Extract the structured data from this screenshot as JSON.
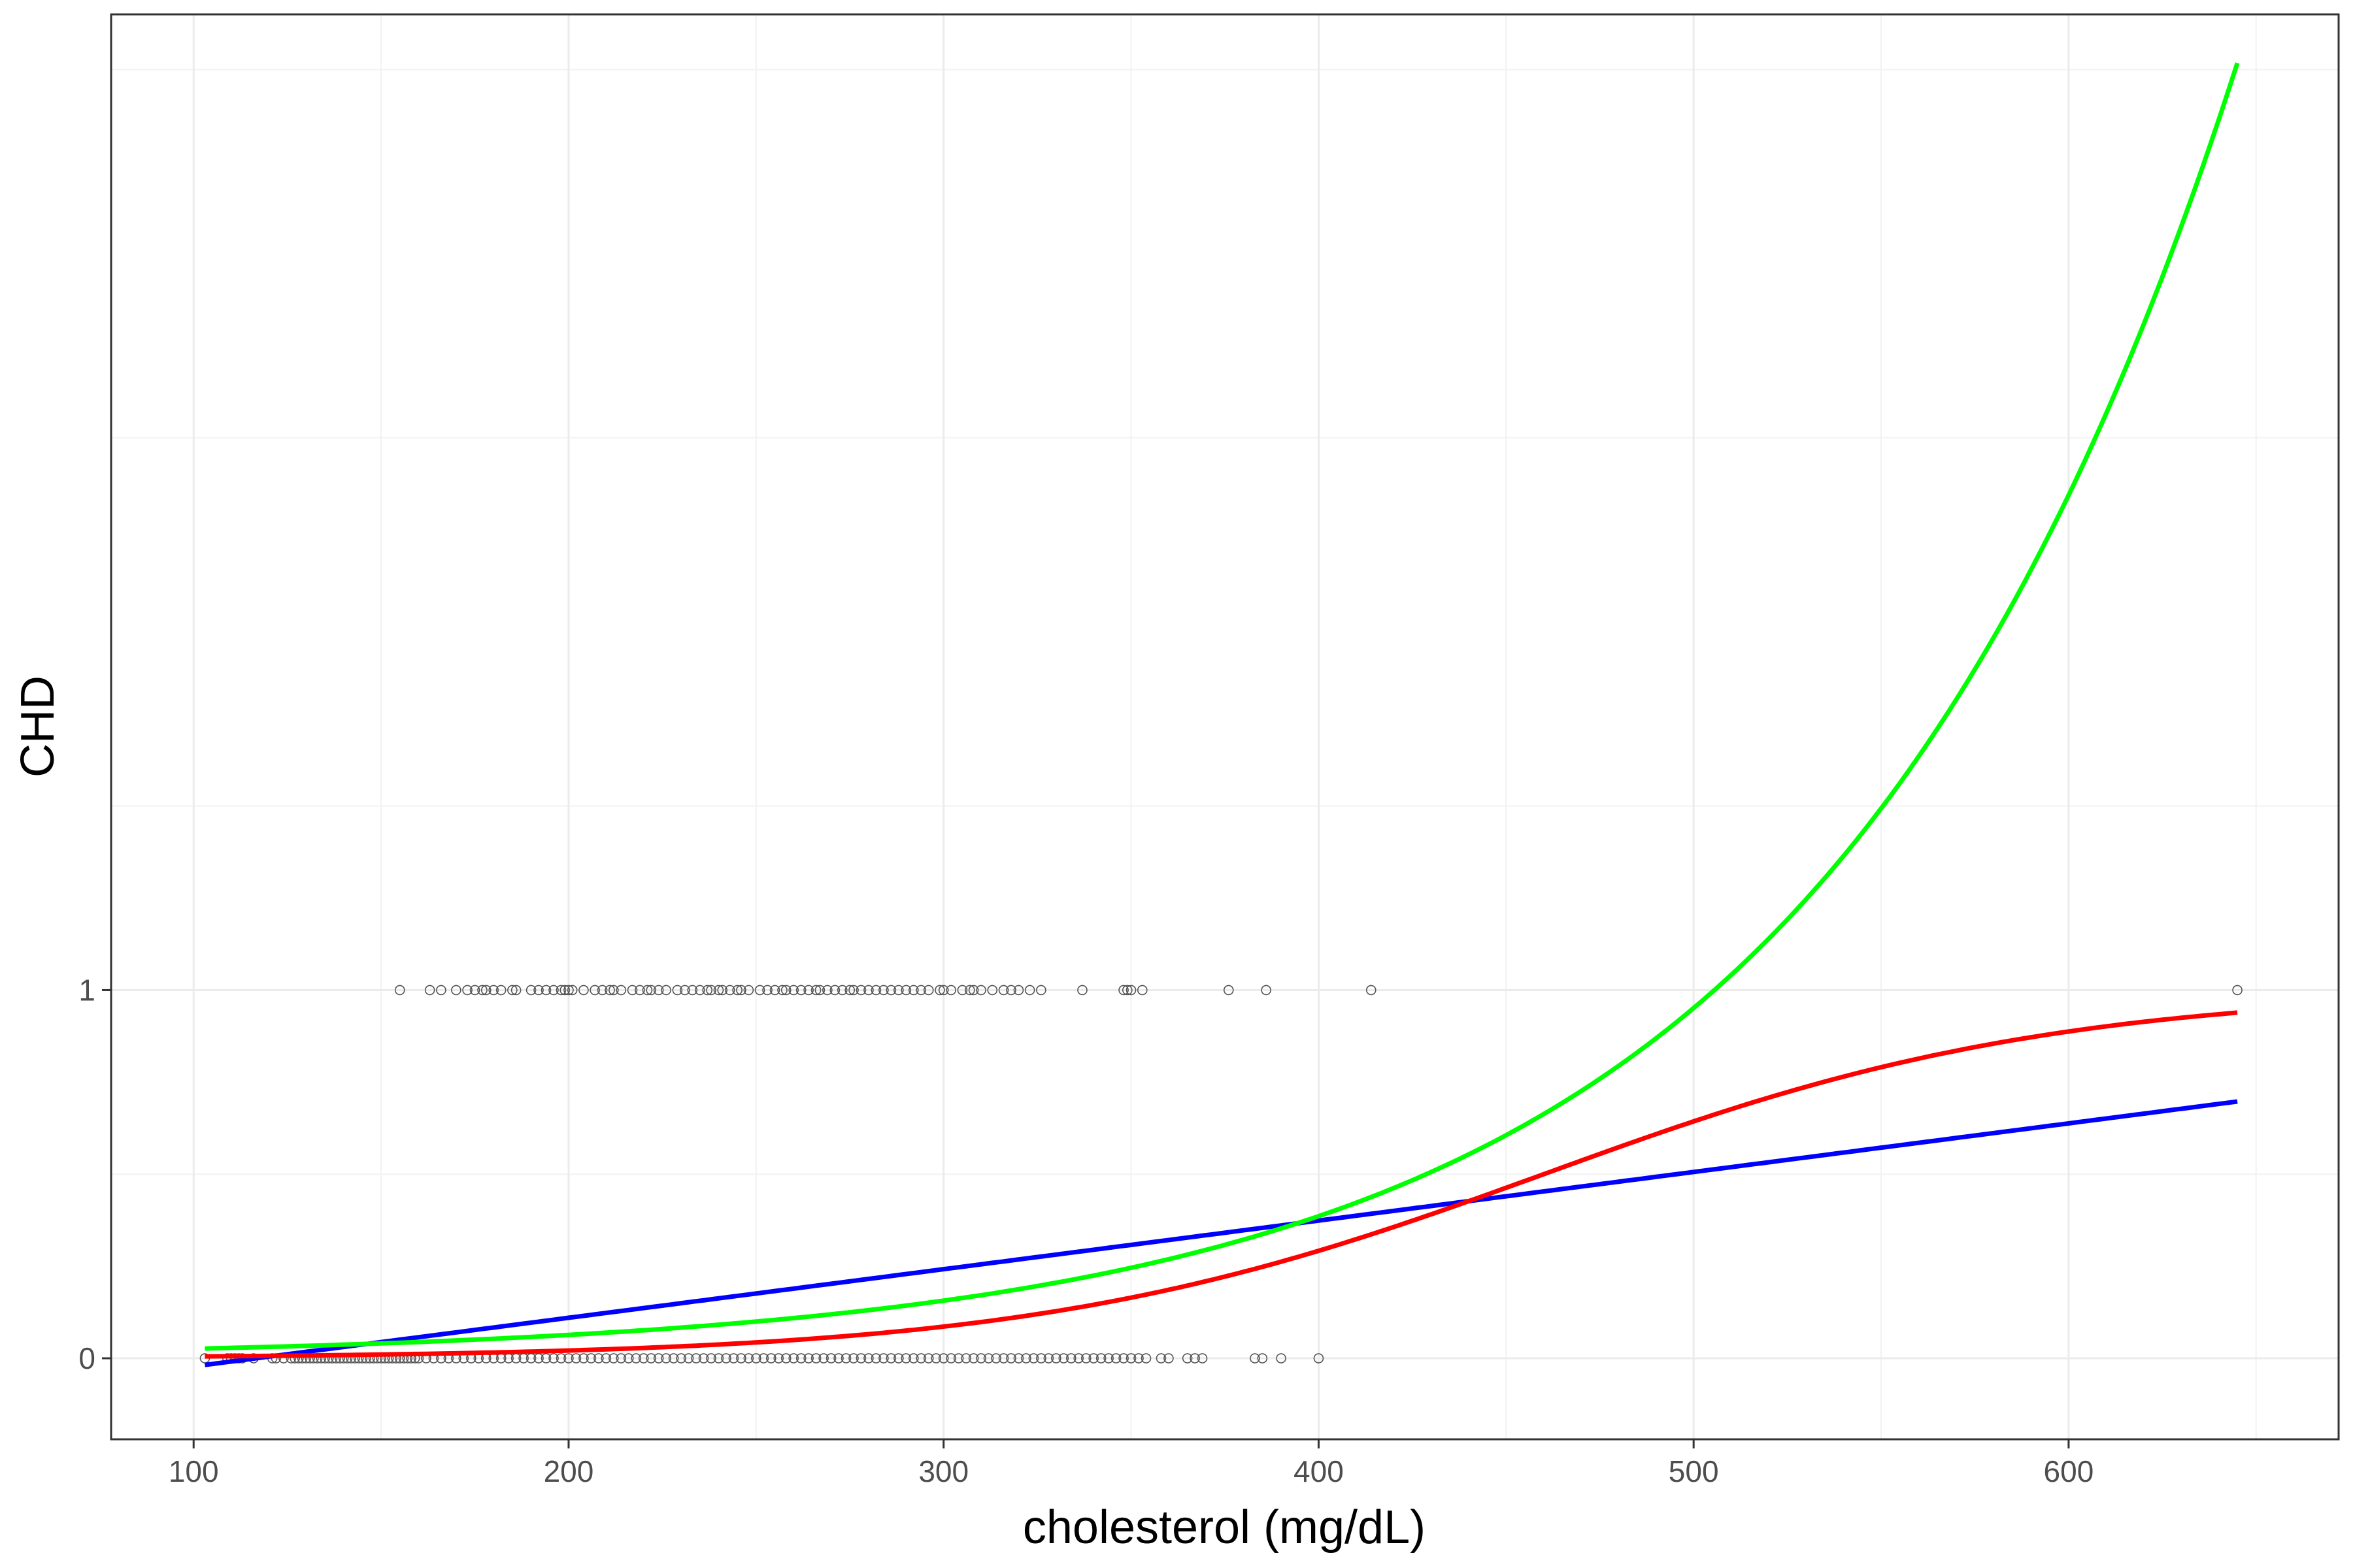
{
  "chart_data": {
    "type": "scatter",
    "xlabel": "cholesterol (mg/dL)",
    "ylabel": "CHD",
    "xlim": [
      78,
      672
    ],
    "ylim": [
      -0.22,
      3.65
    ],
    "x_ticks": [
      100,
      200,
      300,
      400,
      500,
      600
    ],
    "x_tick_labels": [
      "100",
      "200",
      "300",
      "400",
      "500",
      "600"
    ],
    "y_ticks": [
      0,
      1
    ],
    "y_tick_labels": [
      "0",
      "1"
    ],
    "grid": true,
    "points": {
      "y0_x": [
        103,
        109,
        110,
        111,
        112,
        113,
        116,
        121,
        122,
        124,
        126,
        127,
        128,
        129,
        130,
        131,
        132,
        133,
        134,
        135,
        136,
        137,
        138,
        139,
        140,
        141,
        142,
        143,
        144,
        145,
        146,
        147,
        148,
        149,
        150,
        151,
        152,
        153,
        154,
        155,
        156,
        157,
        158,
        159,
        160,
        162,
        164,
        166,
        168,
        170,
        172,
        174,
        176,
        178,
        180,
        182,
        184,
        186,
        188,
        190,
        192,
        194,
        196,
        198,
        200,
        202,
        204,
        206,
        208,
        210,
        212,
        214,
        216,
        218,
        220,
        222,
        224,
        226,
        228,
        230,
        232,
        234,
        236,
        238,
        240,
        242,
        244,
        246,
        248,
        250,
        252,
        254,
        256,
        258,
        260,
        262,
        264,
        266,
        268,
        270,
        272,
        274,
        276,
        278,
        280,
        282,
        284,
        286,
        288,
        290,
        292,
        294,
        296,
        298,
        300,
        302,
        304,
        306,
        308,
        310,
        312,
        314,
        316,
        318,
        320,
        322,
        324,
        326,
        328,
        330,
        332,
        334,
        336,
        338,
        340,
        342,
        344,
        346,
        348,
        350,
        352,
        354,
        358,
        360,
        365,
        367,
        369,
        383,
        385,
        390,
        400
      ],
      "y1_x": [
        155,
        163,
        166,
        170,
        173,
        175,
        177,
        178,
        180,
        182,
        185,
        186,
        190,
        192,
        194,
        196,
        198,
        199,
        200,
        201,
        204,
        207,
        209,
        211,
        212,
        214,
        217,
        219,
        221,
        222,
        224,
        226,
        229,
        231,
        233,
        235,
        237,
        238,
        240,
        241,
        243,
        245,
        246,
        248,
        251,
        253,
        255,
        257,
        258,
        260,
        262,
        264,
        266,
        267,
        269,
        271,
        273,
        275,
        276,
        278,
        280,
        282,
        284,
        286,
        288,
        290,
        292,
        294,
        296,
        299,
        300,
        302,
        305,
        307,
        308,
        310,
        313,
        316,
        318,
        320,
        323,
        326,
        337,
        348,
        349,
        350,
        353,
        376,
        386,
        414,
        645
      ]
    },
    "series": [
      {
        "name": "",
        "color": "#0000ff",
        "model": "linear",
        "x_range": [
          103,
          645
        ],
        "intercept": -0.154,
        "slope": 0.00132
      },
      {
        "name": "",
        "color": "#ff0000",
        "model": "logistic",
        "x_range": [
          103,
          645
        ],
        "intercept": -6.79,
        "slope": 0.01476
      },
      {
        "name": "",
        "color": "#00ff00",
        "model": "exponential",
        "x_range": [
          103,
          645
        ],
        "intercept": -4.56,
        "slope": 0.00902
      }
    ]
  }
}
